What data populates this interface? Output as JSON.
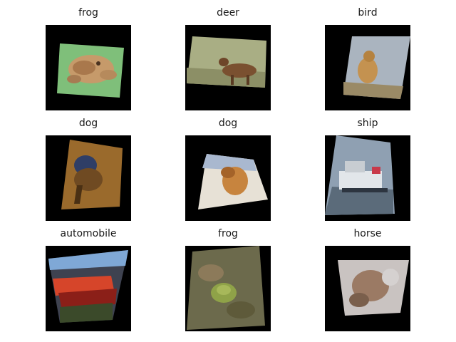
{
  "grid": {
    "labels": [
      "frog",
      "deer",
      "bird",
      "dog",
      "dog",
      "ship",
      "automobile",
      "frog",
      "horse"
    ]
  }
}
